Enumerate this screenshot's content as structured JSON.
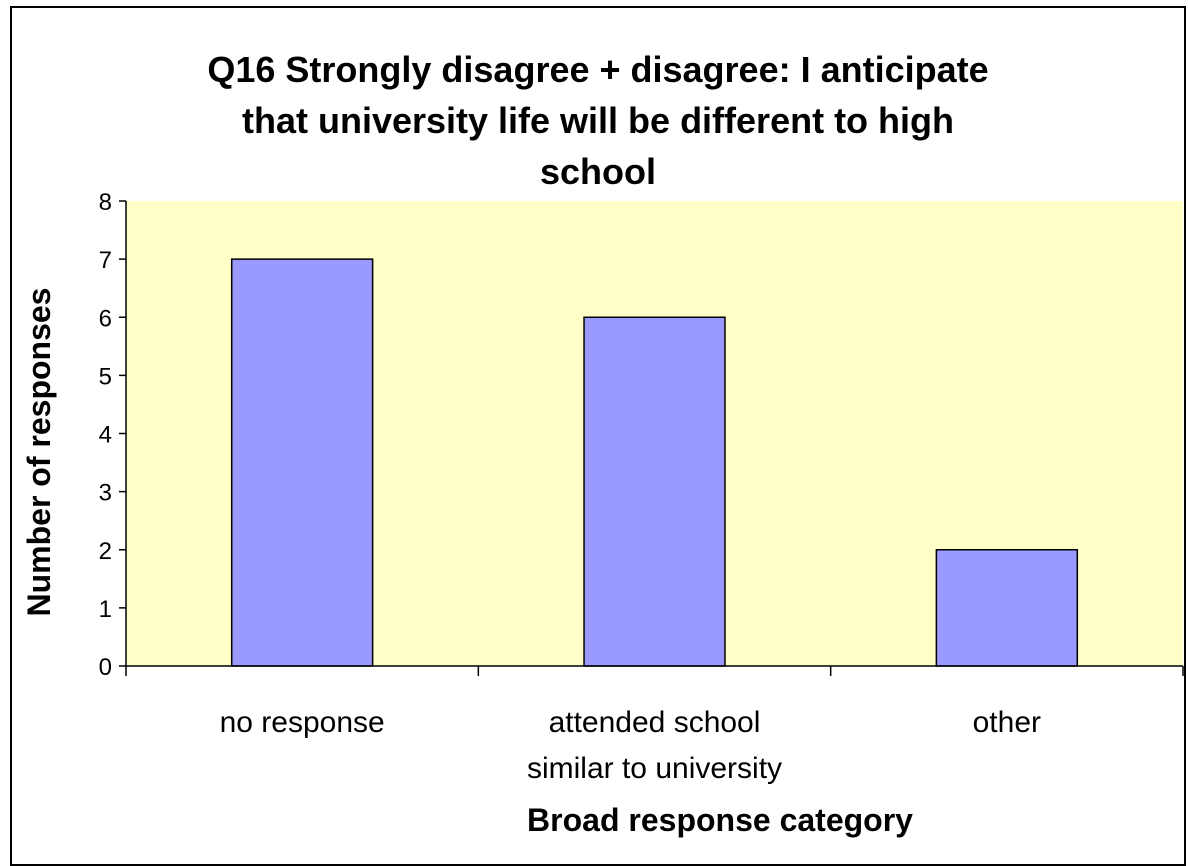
{
  "chart_data": {
    "type": "bar",
    "title_lines": [
      "Q16 Strongly disagree + disagree: I anticipate",
      "that university life will be different to high",
      "school"
    ],
    "xlabel": "Broad response category",
    "ylabel": "Number of responses",
    "categories": [
      [
        "no response"
      ],
      [
        "attended school",
        "similar to university"
      ],
      [
        "other"
      ]
    ],
    "values": [
      7,
      6,
      2
    ],
    "ylim": [
      0,
      8
    ],
    "yticks": [
      "0",
      "1",
      "2",
      "3",
      "4",
      "5",
      "6",
      "7",
      "8"
    ],
    "grid": false,
    "legend": "none",
    "colors": {
      "plot_background": "#ffffc8",
      "bar_fill": "#9999ff",
      "bar_stroke": "#000000"
    }
  }
}
